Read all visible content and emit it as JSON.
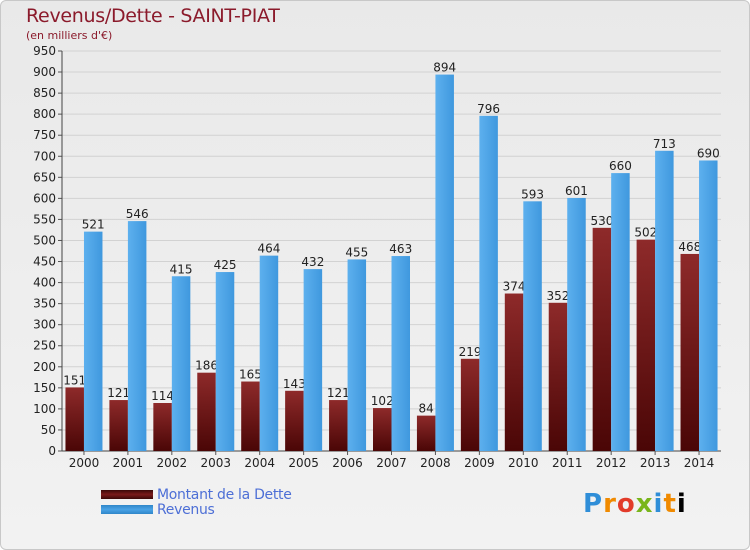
{
  "header": {
    "title": "Revenus/Dette - SAINT-PIAT",
    "subtitle": "(en milliers d'€)"
  },
  "legend": {
    "items": [
      {
        "label": "Montant de la Dette",
        "color": "#7a1a1a"
      },
      {
        "label": "Revenus",
        "color": "#4aa3e6"
      }
    ]
  },
  "logo": {
    "text": "Proxiti"
  },
  "chart_data": {
    "type": "bar",
    "categories": [
      "2000",
      "2001",
      "2002",
      "2003",
      "2004",
      "2005",
      "2006",
      "2007",
      "2008",
      "2009",
      "2010",
      "2011",
      "2012",
      "2013",
      "2014"
    ],
    "series": [
      {
        "name": "Montant de la Dette",
        "color": "#7a1a1a",
        "values": [
          151,
          121,
          114,
          186,
          165,
          143,
          121,
          102,
          84,
          219,
          374,
          352,
          530,
          502,
          468
        ]
      },
      {
        "name": "Revenus",
        "color": "#4aa3e6",
        "values": [
          521,
          546,
          415,
          425,
          464,
          432,
          455,
          463,
          894,
          796,
          593,
          601,
          660,
          713,
          690
        ]
      }
    ],
    "ylim": [
      0,
      950
    ],
    "yticks": [
      0,
      50,
      100,
      150,
      200,
      250,
      300,
      350,
      400,
      450,
      500,
      550,
      600,
      650,
      700,
      750,
      800,
      850,
      900,
      950
    ],
    "grid": true,
    "legend_position": "bottom-left"
  }
}
